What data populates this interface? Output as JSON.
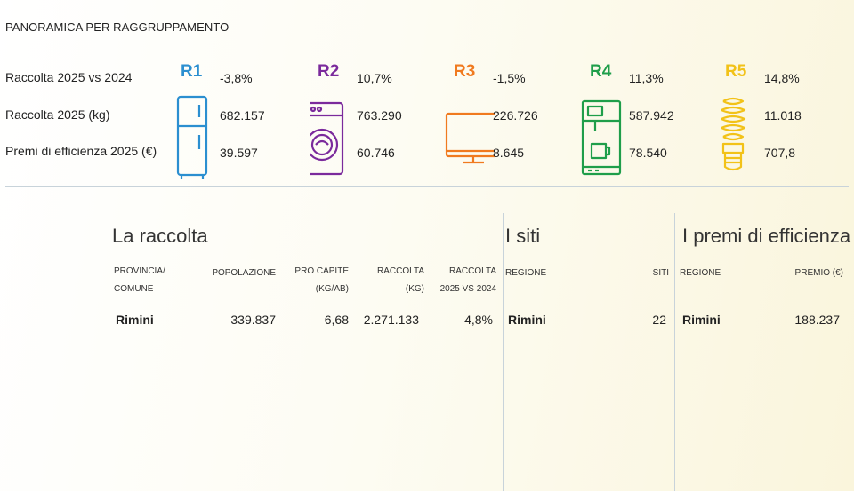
{
  "header": {
    "title": "PANORAMICA PER RAGGRUPPAMENTO"
  },
  "row_labels": [
    "Raccolta 2025 vs 2024",
    "Raccolta 2025 (kg)",
    "Premi di efficienza 2025 (€)"
  ],
  "groups": [
    {
      "code": "R1",
      "color": "#2b8fd0",
      "icon": "fridge-icon",
      "vs": "-3,8%",
      "kg": "682.157",
      "premi": "39.597"
    },
    {
      "code": "R2",
      "color": "#7b2a9c",
      "icon": "washing-machine-icon",
      "vs": "10,7%",
      "kg": "763.290",
      "premi": "60.746"
    },
    {
      "code": "R3",
      "color": "#f07a1f",
      "icon": "monitor-icon",
      "vs": "-1,5%",
      "kg": "226.726",
      "premi": "8.645"
    },
    {
      "code": "R4",
      "color": "#1f9e4a",
      "icon": "coffee-machine-icon",
      "vs": "11,3%",
      "kg": "587.942",
      "premi": "78.540"
    },
    {
      "code": "R5",
      "color": "#f2c218",
      "icon": "light-bulb-icon",
      "vs": "14,8%",
      "kg": "11.018",
      "premi": "707,8"
    }
  ],
  "raccolta": {
    "title": "La raccolta",
    "headers": {
      "provincia": [
        "PROVINCIA/",
        "COMUNE"
      ],
      "popolazione": "POPOLAZIONE",
      "pro_capite": [
        "PRO CAPITE",
        "(kg/ab)"
      ],
      "raccolta": [
        "RACCOLTA",
        "(kg)"
      ],
      "vs": [
        "RACCOLTA",
        "2025 VS 2024"
      ]
    },
    "row": {
      "comune": "Rimini",
      "popolazione": "339.837",
      "pro_capite": "6,68",
      "raccolta": "2.271.133",
      "vs": "4,8%"
    }
  },
  "siti": {
    "title": "I siti",
    "headers": {
      "regione": "REGIONE",
      "siti": "SITI"
    },
    "row": {
      "regione": "Rimini",
      "siti": "22"
    }
  },
  "premi": {
    "title": "I premi di efficienza",
    "headers": {
      "regione": "REGIONE",
      "premio": "PREMIO (€)"
    },
    "row": {
      "regione": "Rimini",
      "premio": "188.237"
    }
  }
}
